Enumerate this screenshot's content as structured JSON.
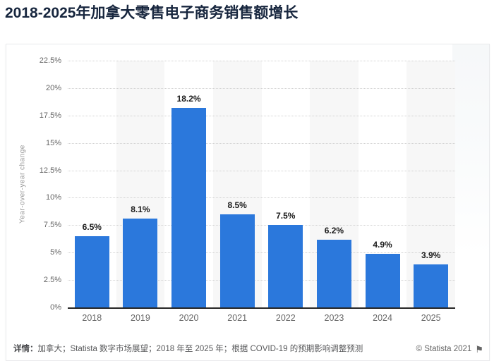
{
  "title": "2018-2025年加拿大零售电子商务销售额增长",
  "chart_data": {
    "type": "bar",
    "categories": [
      "2018",
      "2019",
      "2020",
      "2021",
      "2022",
      "2023",
      "2024",
      "2025"
    ],
    "values": [
      6.5,
      8.1,
      18.2,
      8.5,
      7.5,
      6.2,
      4.9,
      3.9
    ],
    "value_labels": [
      "6.5%",
      "8.1%",
      "18.2%",
      "8.5%",
      "7.5%",
      "6.2%",
      "4.9%",
      "3.9%"
    ],
    "xlabel": "",
    "ylabel": "Year-over-year change",
    "ylim": [
      0,
      22.5
    ],
    "ytick_step": 2.5,
    "yticks_top_to_bottom": [
      "22.5%",
      "20%",
      "17.5%",
      "15%",
      "12.5%",
      "10%",
      "7.5%",
      "5%",
      "2.5%",
      "0%"
    ],
    "grid": "horizontal-dotted",
    "legend": "none",
    "alternating_category_bands": true,
    "bar_color": "#2b78dc",
    "band_color": "#f7f7f7"
  },
  "footer": {
    "label": "详情：",
    "text": "加拿大；Statista 数字市场展望；2018 年至 2025 年；根据 COVID-19 的预期影响调整预测",
    "copyright": "© Statista 2021",
    "flag_icon": "⚑"
  },
  "colors": {
    "title": "#17263e",
    "axis": "#262626",
    "tick_text": "#666666",
    "value_label": "#1a1a1a",
    "gridline": "#d2d2d2"
  }
}
